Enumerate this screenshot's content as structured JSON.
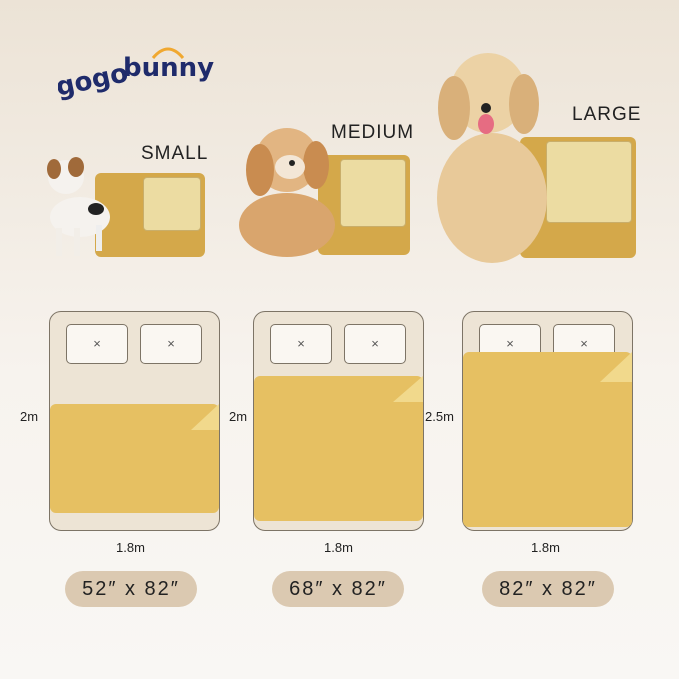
{
  "brand": {
    "logo_text": "gogobunny",
    "colors": {
      "navy": "#1f2b6b",
      "accent": "#f0a830"
    }
  },
  "sizes": [
    {
      "label": "SMALL",
      "height": "2m",
      "width": "1.8m",
      "dimensions": "52″ x 82″"
    },
    {
      "label": "MEDIUM",
      "height": "2m",
      "width": "1.8m",
      "dimensions": "68″ x 82″"
    },
    {
      "label": "LARGE",
      "height": "2.5m",
      "width": "1.8m",
      "dimensions": "82″ x 82″"
    }
  ],
  "pillow_mark": "×",
  "colors": {
    "pad": "#e6c062",
    "bed": "#ede4d5",
    "pill": "#dbc9b1"
  }
}
